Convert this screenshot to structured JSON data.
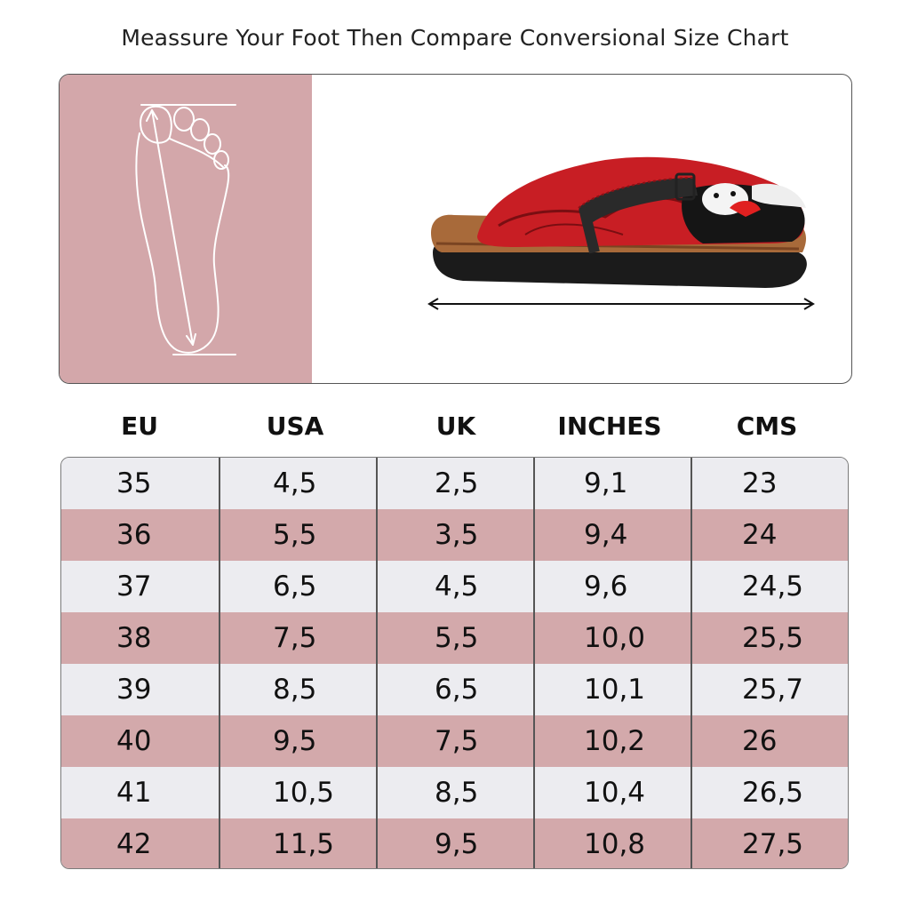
{
  "title": "Meassure Your Foot Then Compare Conversional Size Chart",
  "colors": {
    "pink": "#d3a7aa",
    "light_row": "#ececf0",
    "pink_row": "#d3a9ab"
  },
  "hero": {
    "foot_icon": "foot-outline-icon",
    "shoe_image": "red-clog-image",
    "arrow": "length-arrow-icon"
  },
  "table": {
    "headers": [
      "EU",
      "USA",
      "UK",
      "INCHES",
      "CMS"
    ],
    "rows": [
      [
        "35",
        "4,5",
        "2,5",
        "9,1",
        "23"
      ],
      [
        "36",
        "5,5",
        "3,5",
        "9,4",
        "24"
      ],
      [
        "37",
        "6,5",
        "4,5",
        "9,6",
        "24,5"
      ],
      [
        "38",
        "7,5",
        "5,5",
        "10,0",
        "25,5"
      ],
      [
        "39",
        "8,5",
        "6,5",
        "10,1",
        "25,7"
      ],
      [
        "40",
        "9,5",
        "7,5",
        "10,2",
        "26"
      ],
      [
        "41",
        "10,5",
        "8,5",
        "10,4",
        "26,5"
      ],
      [
        "42",
        "11,5",
        "9,5",
        "10,8",
        "27,5"
      ]
    ]
  }
}
